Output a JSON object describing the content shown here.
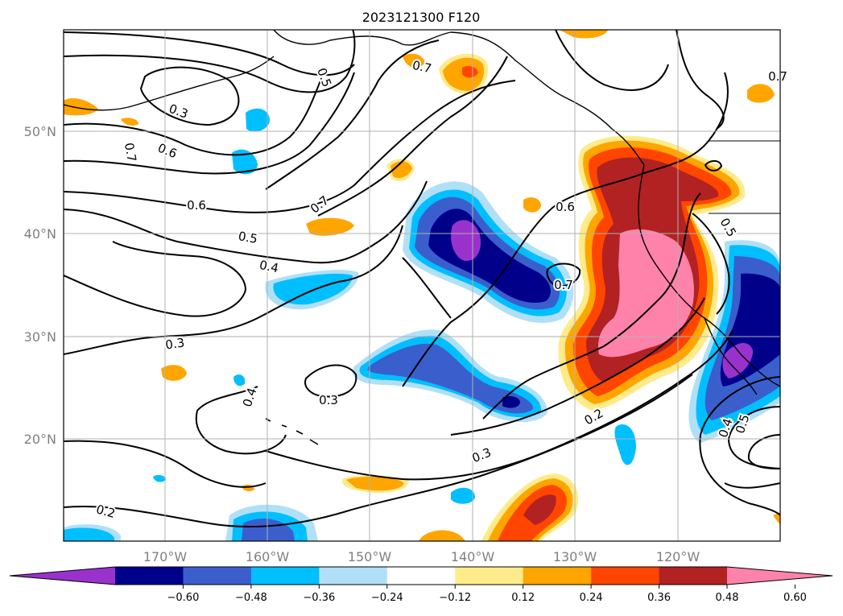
{
  "title": "2023121300 F120",
  "map": {
    "lon_labels": [
      "170°W",
      "160°W",
      "150°W",
      "140°W",
      "130°W",
      "120°W"
    ],
    "lat_labels": [
      "50°N",
      "40°N",
      "30°N",
      "20°N"
    ],
    "grid": true,
    "contour_labels": [
      "0.7",
      "0.5",
      "0.3",
      "0.7",
      "0.6",
      "0.6",
      "0.5",
      "0.4",
      "0.7",
      "0.7",
      "0.6",
      "0.7",
      "0.3",
      "0.4",
      "0.3",
      "0.2",
      "0.3",
      "0.2",
      "0.5",
      "0.4",
      "0.5"
    ]
  },
  "colorbar": {
    "ticks": [
      "−0.60",
      "−0.48",
      "−0.36",
      "−0.24",
      "−0.12",
      "0.12",
      "0.24",
      "0.36",
      "0.48",
      "0.60"
    ],
    "colors": [
      "#9932cc",
      "#00008b",
      "#3a5fcd",
      "#00bfff",
      "#b0e0f8",
      "#ffffff",
      "#ffeb8a",
      "#ffa500",
      "#ff4500",
      "#b22222",
      "#ff82ab"
    ],
    "extend": "both"
  }
}
